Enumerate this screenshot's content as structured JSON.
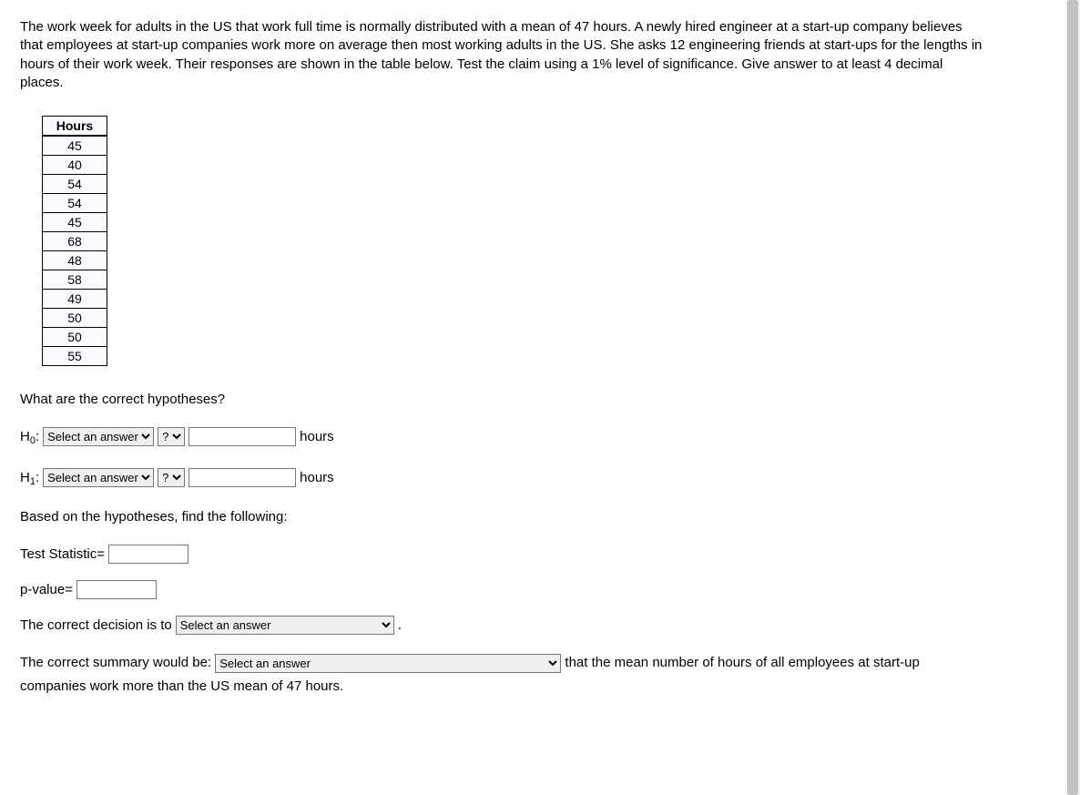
{
  "prompt": "The work week for adults in the US that work full time is normally distributed with a mean of 47 hours. A newly hired engineer at a start-up company believes that employees at start-up companies work more on average then most working adults in the US. She asks 12 engineering friends at start-ups for the lengths in hours of their work week. Their responses are shown in the table below. Test the claim using a 1% level of significance. Give answer to at least 4 decimal places.",
  "table": {
    "header": "Hours",
    "rows": [
      45,
      40,
      54,
      54,
      45,
      68,
      48,
      58,
      49,
      50,
      50,
      55
    ],
    "border_color": "#000000",
    "cell_bg": "#fbfbff"
  },
  "q1": "What are the correct hypotheses?",
  "hypotheses": {
    "h0_label_pre": "H",
    "h0_sub": "0",
    "h1_label_pre": "H",
    "h1_sub": "1",
    "colon": ":",
    "param_placeholder": "Select an answer",
    "op_placeholder": "?",
    "value_placeholder": "",
    "unit": "hours"
  },
  "q2": "Based on the hypotheses, find the following:",
  "test_stat_label": "Test Statistic=",
  "pvalue_label": "p-value=",
  "decision": {
    "pre": "The correct decision is to ",
    "placeholder": "Select an answer",
    "post": " ."
  },
  "summary": {
    "pre": "The correct summary would be: ",
    "placeholder": "Select an answer",
    "mid": " that the mean number of hours of all employees at start-up companies work more than the US mean of 47 hours."
  },
  "styling": {
    "body_font": "Trebuchet MS",
    "body_fontsize": 15,
    "table_fontsize": 14,
    "select_bg": "#efefef",
    "input_border": "#767676",
    "scrollbar_bg": "#f0f0f0",
    "scrollbar_thumb": "#c2c2c2"
  }
}
